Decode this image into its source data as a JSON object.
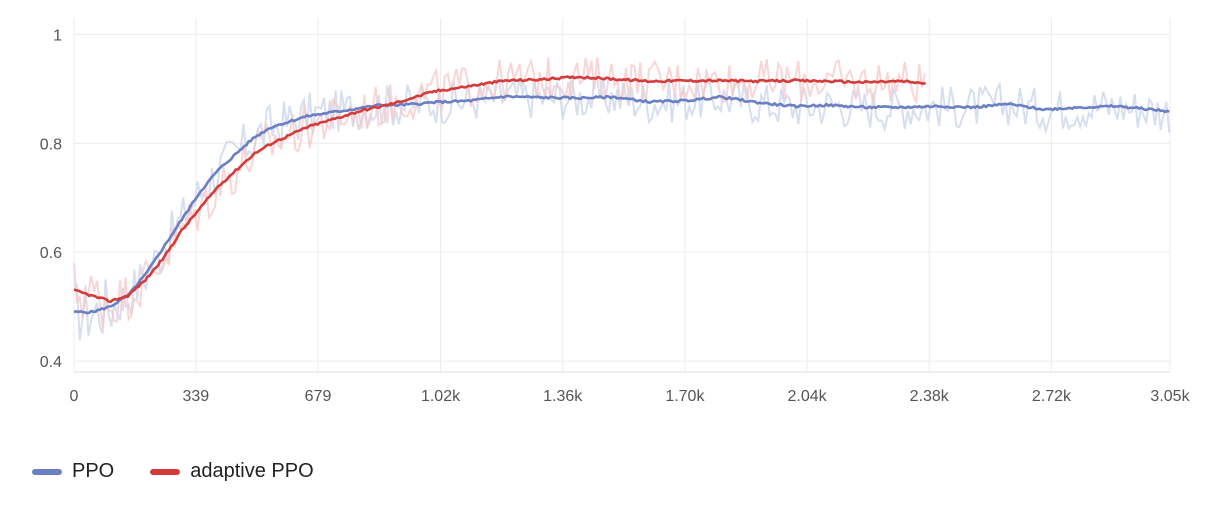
{
  "chart_data": {
    "type": "line",
    "title": "",
    "xlabel": "",
    "ylabel": "",
    "xlim": [
      0,
      3050
    ],
    "ylim": [
      0.38,
      1.03
    ],
    "grid": true,
    "legend_position": "bottom-left",
    "x_ticks": [
      {
        "value": 0,
        "label": "0"
      },
      {
        "value": 339,
        "label": "339"
      },
      {
        "value": 679,
        "label": "679"
      },
      {
        "value": 1020,
        "label": "1.02k"
      },
      {
        "value": 1360,
        "label": "1.36k"
      },
      {
        "value": 1700,
        "label": "1.70k"
      },
      {
        "value": 2040,
        "label": "2.04k"
      },
      {
        "value": 2380,
        "label": "2.38k"
      },
      {
        "value": 2720,
        "label": "2.72k"
      },
      {
        "value": 3050,
        "label": "3.05k"
      }
    ],
    "y_ticks": [
      {
        "value": 0.4,
        "label": "0.4"
      },
      {
        "value": 0.6,
        "label": "0.6"
      },
      {
        "value": 0.8,
        "label": "0.8"
      },
      {
        "value": 1.0,
        "label": "1"
      }
    ],
    "series": [
      {
        "name": "PPO",
        "color": "#6b7fc4",
        "raw_color": "#c9d3ea",
        "x": [
          0,
          50,
          100,
          150,
          200,
          250,
          300,
          350,
          400,
          450,
          500,
          550,
          600,
          650,
          700,
          750,
          800,
          850,
          900,
          950,
          1000,
          1100,
          1200,
          1300,
          1400,
          1500,
          1600,
          1700,
          1800,
          1900,
          2000,
          2100,
          2200,
          2300,
          2400,
          2500,
          2600,
          2700,
          2800,
          2900,
          3000,
          3050
        ],
        "values": [
          0.49,
          0.49,
          0.5,
          0.52,
          0.56,
          0.61,
          0.66,
          0.71,
          0.75,
          0.78,
          0.81,
          0.83,
          0.84,
          0.85,
          0.855,
          0.86,
          0.865,
          0.87,
          0.87,
          0.872,
          0.875,
          0.878,
          0.886,
          0.884,
          0.883,
          0.885,
          0.876,
          0.878,
          0.885,
          0.875,
          0.868,
          0.87,
          0.866,
          0.866,
          0.868,
          0.866,
          0.872,
          0.862,
          0.866,
          0.868,
          0.862,
          0.858
        ]
      },
      {
        "name": "adaptive PPO",
        "color": "#d63b3b",
        "raw_color": "#f7c8c8",
        "x": [
          0,
          50,
          100,
          150,
          200,
          250,
          300,
          350,
          400,
          450,
          500,
          550,
          600,
          650,
          700,
          750,
          800,
          850,
          900,
          950,
          1000,
          1050,
          1100,
          1150,
          1200,
          1300,
          1400,
          1500,
          1600,
          1700,
          1800,
          1900,
          2000,
          2100,
          2200,
          2300,
          2370
        ],
        "values": [
          0.53,
          0.52,
          0.51,
          0.52,
          0.55,
          0.59,
          0.64,
          0.68,
          0.72,
          0.75,
          0.78,
          0.8,
          0.815,
          0.83,
          0.84,
          0.85,
          0.86,
          0.867,
          0.875,
          0.885,
          0.895,
          0.9,
          0.905,
          0.91,
          0.915,
          0.917,
          0.922,
          0.918,
          0.914,
          0.915,
          0.915,
          0.914,
          0.915,
          0.914,
          0.912,
          0.914,
          0.91
        ]
      }
    ]
  }
}
